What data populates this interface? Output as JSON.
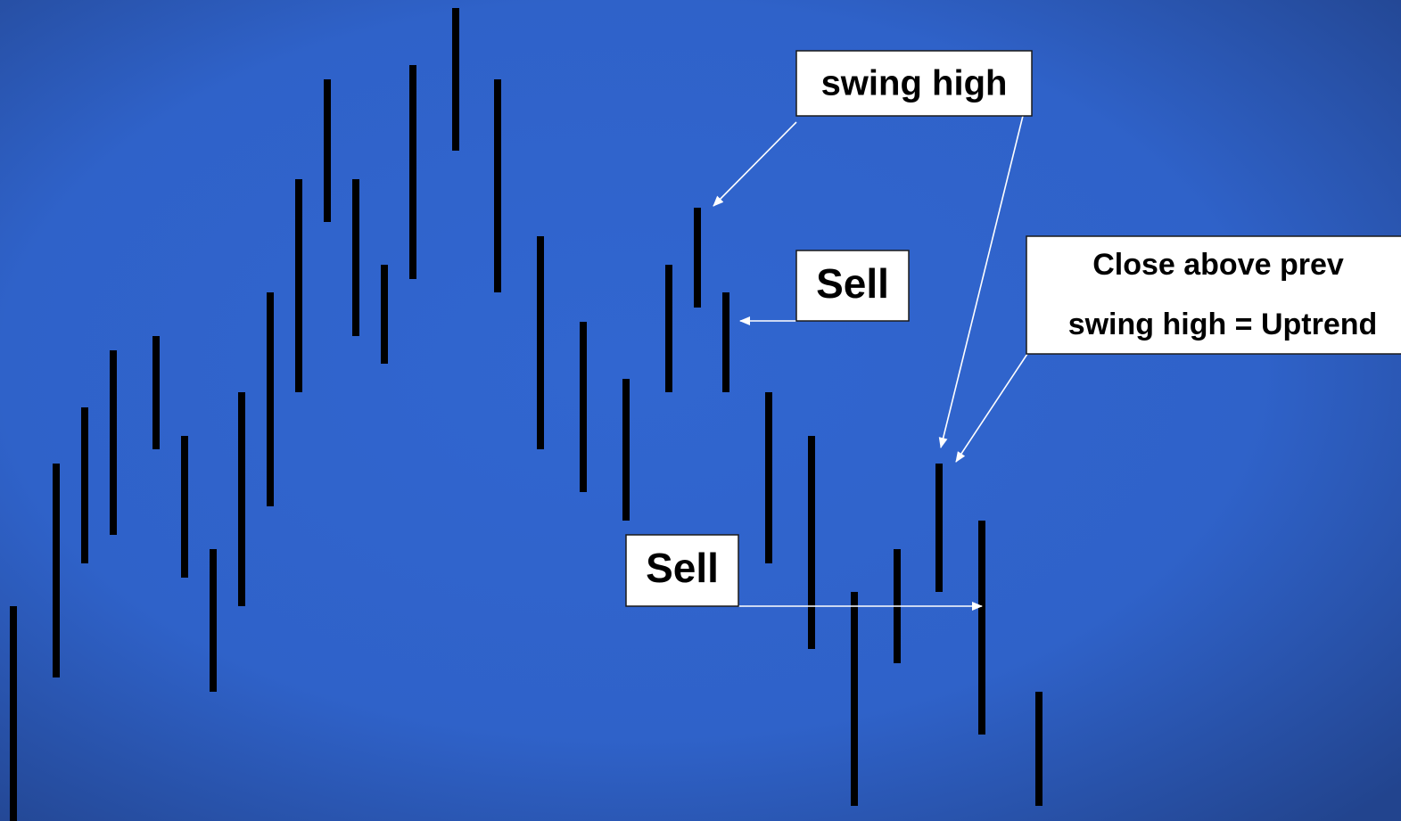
{
  "labels": {
    "swing_high": "swing high",
    "sell_upper": "Sell",
    "sell_lower": "Sell",
    "uptrend_line1": "Close above prev",
    "uptrend_line2": "swing high = Uptrend"
  }
}
